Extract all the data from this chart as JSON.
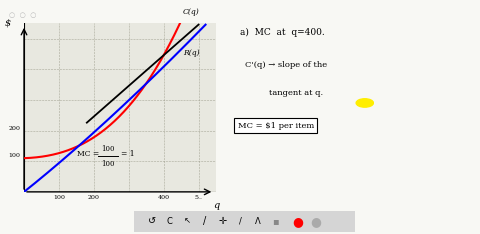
{
  "bg_color": "#f8f8f4",
  "graph_bg": "#e8e8e0",
  "ylabel": "$",
  "xlabel": "q",
  "curve_C_label": "C(q)",
  "curve_R_label": "R(q)",
  "text_a": "a)  MC  at  q=400.",
  "text_b": "C'(q) → slope of the",
  "text_c": "          tangent at q.",
  "text_d": "MC = $1 per item",
  "text_mc": "MC = ",
  "text_num": "100",
  "text_den": "100",
  "text_eq1": "= 1",
  "toolbar_bg": "#d8d8d8"
}
